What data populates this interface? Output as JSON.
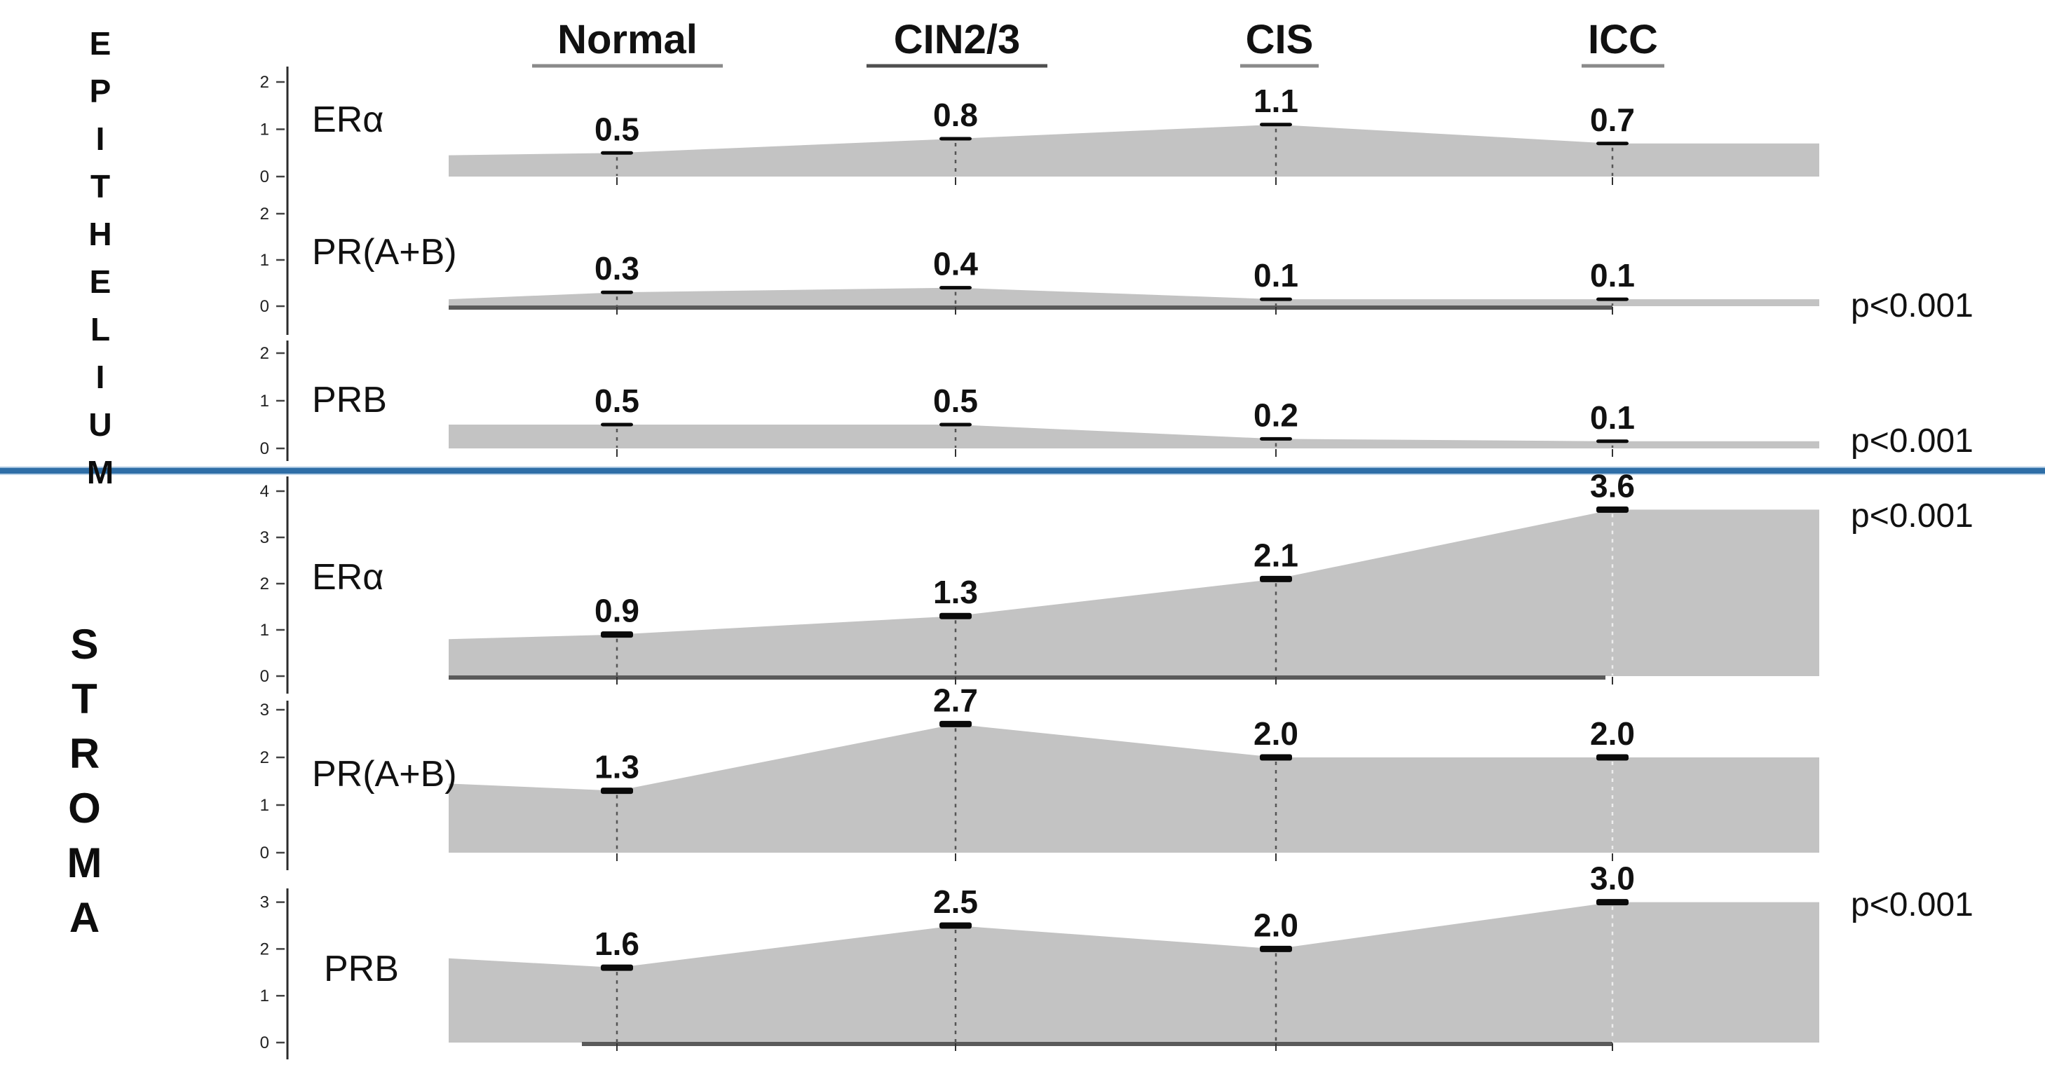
{
  "sections": [
    {
      "label": "EPITHELIUM"
    },
    {
      "label": "STROMA"
    }
  ],
  "chart_data": {
    "type": "area",
    "categories": [
      "Normal",
      "CIN2/3",
      "CIS",
      "ICC"
    ],
    "rows": [
      {
        "section": "EPITHELIUM",
        "label": "ERα",
        "values": [
          0.5,
          0.8,
          1.1,
          0.7
        ],
        "value_labels": [
          "0.5",
          "0.8",
          "1.1",
          "0.7"
        ],
        "ylim": [
          0,
          2
        ],
        "yticks": [
          2,
          1,
          0
        ],
        "p_value": ""
      },
      {
        "section": "EPITHELIUM",
        "label": "PR(A+B)",
        "values": [
          0.3,
          0.4,
          0.1,
          0.1
        ],
        "value_labels": [
          "0.3",
          "0.4",
          "0.1",
          "0.1"
        ],
        "ylim": [
          0,
          2
        ],
        "yticks": [
          2,
          1,
          0
        ],
        "p_value": "p<0.001"
      },
      {
        "section": "EPITHELIUM",
        "label": "PRB",
        "values": [
          0.5,
          0.5,
          0.2,
          0.1
        ],
        "value_labels": [
          "0.5",
          "0.5",
          "0.2",
          "0.1"
        ],
        "ylim": [
          0,
          2
        ],
        "yticks": [
          2,
          1,
          0
        ],
        "p_value": "p<0.001"
      },
      {
        "section": "STROMA",
        "label": "ERα",
        "values": [
          0.9,
          1.3,
          2.1,
          3.6
        ],
        "value_labels": [
          "0.9",
          "1.3",
          "2.1",
          "3.6"
        ],
        "ylim": [
          0,
          4
        ],
        "yticks": [
          4,
          3,
          2,
          1,
          0
        ],
        "p_value": "p<0.001"
      },
      {
        "section": "STROMA",
        "label": "PR(A+B)",
        "values": [
          1.3,
          2.7,
          2.0,
          2.0
        ],
        "value_labels": [
          "1.3",
          "2.7",
          "2.0",
          "2.0"
        ],
        "ylim": [
          0,
          3
        ],
        "yticks": [
          3,
          2,
          1,
          0
        ],
        "p_value": ""
      },
      {
        "section": "STROMA",
        "label": "PRB",
        "values": [
          1.6,
          2.5,
          2.0,
          3.0
        ],
        "value_labels": [
          "1.6",
          "2.5",
          "2.0",
          "3.0"
        ],
        "ylim": [
          0,
          3
        ],
        "yticks": [
          3,
          2,
          1,
          0
        ],
        "p_value": "p<0.001"
      }
    ],
    "left_edge_levels": [
      0.45,
      0.15,
      0.5,
      0.8,
      1.45,
      1.8
    ],
    "colors": {
      "area_fill": "#c3c3c3",
      "divider_blue": "#2e6ea7",
      "dark_baseline": "#5a5a5a",
      "text": "#111111"
    },
    "legend": "none",
    "grid": false
  }
}
